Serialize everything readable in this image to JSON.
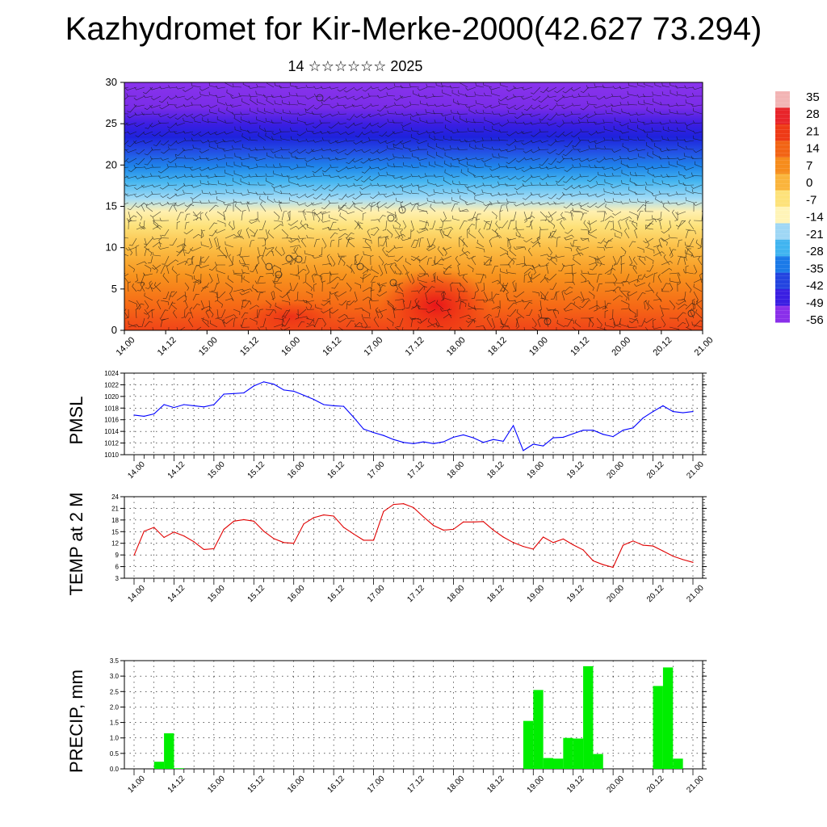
{
  "title": "Kazhydromet for Kir-Merke-2000(42.627 73.294)",
  "subtitle": "14 ☆☆☆☆☆☆ 2025",
  "time_labels": [
    "14.00",
    "14.12",
    "15.00",
    "15.12",
    "16.00",
    "16.12",
    "17.00",
    "17.12",
    "18.00",
    "18.12",
    "19.00",
    "19.12",
    "20.00",
    "20.12",
    "21.00"
  ],
  "chart_data": [
    {
      "type": "heatmap",
      "name": "temperature-wind-section",
      "y_ticks": [
        "0",
        "5",
        "10",
        "15",
        "20",
        "25",
        "30"
      ],
      "ylim": [
        0,
        30
      ],
      "x_range": [
        "14.00",
        "21.00"
      ],
      "colorbar": {
        "labels": [
          "35",
          "28",
          "21",
          "14",
          "7",
          "0",
          "-7",
          "-14",
          "-21",
          "-28",
          "-35",
          "-42",
          "-49",
          "-56"
        ],
        "colors": [
          "#f2b4b4",
          "#e8242a",
          "#ee3a16",
          "#f26414",
          "#f68c1c",
          "#fab43c",
          "#fde27a",
          "#fff4b8",
          "#9fd7f5",
          "#40b4f0",
          "#1b7ae8",
          "#2344e0",
          "#3a1ee2",
          "#8a2fea"
        ]
      }
    },
    {
      "type": "line",
      "ylabel": "PMSL",
      "ylim": [
        1010,
        1024
      ],
      "y_ticks": [
        "1010",
        "1012",
        "1014",
        "1016",
        "1018",
        "1020",
        "1022",
        "1024"
      ],
      "line_color": "#0000ff",
      "x": [
        0,
        1,
        2,
        3,
        4,
        5,
        6,
        7,
        8,
        9,
        10,
        11,
        12,
        13,
        14,
        15,
        16,
        17,
        18,
        19,
        20,
        21,
        22,
        23,
        24,
        25,
        26,
        27,
        28,
        29,
        30,
        31,
        32,
        33,
        34,
        35,
        36,
        37,
        38,
        39,
        40,
        41,
        42,
        43,
        44,
        45,
        46,
        47,
        48,
        49,
        50,
        51,
        52,
        53,
        54,
        55,
        56
      ],
      "values": [
        1016.8,
        1016.6,
        1017.0,
        1018.6,
        1018.1,
        1018.6,
        1018.4,
        1018.2,
        1018.6,
        1020.4,
        1020.5,
        1020.6,
        1021.8,
        1022.5,
        1022.1,
        1021.1,
        1020.9,
        1020.2,
        1019.5,
        1018.6,
        1018.4,
        1018.3,
        1016.4,
        1014.4,
        1013.8,
        1013.3,
        1012.6,
        1012.1,
        1011.9,
        1012.2,
        1011.9,
        1012.2,
        1013.0,
        1013.4,
        1012.9,
        1012.1,
        1012.6,
        1012.3,
        1015.0,
        1010.7,
        1011.8,
        1011.5,
        1012.9,
        1013.0,
        1013.6,
        1014.2,
        1014.2,
        1013.5,
        1013.1,
        1014.2,
        1014.6,
        1016.3,
        1017.4,
        1018.4,
        1017.4,
        1017.2,
        1017.4
      ]
    },
    {
      "type": "line",
      "ylabel": "TEMP at 2 M",
      "ylim": [
        3,
        24
      ],
      "y_ticks": [
        "3",
        "6",
        "9",
        "12",
        "15",
        "18",
        "21",
        "24"
      ],
      "line_color": "#e00000",
      "x": [
        0,
        1,
        2,
        3,
        4,
        5,
        6,
        7,
        8,
        9,
        10,
        11,
        12,
        13,
        14,
        15,
        16,
        17,
        18,
        19,
        20,
        21,
        22,
        23,
        24,
        25,
        26,
        27,
        28,
        29,
        30,
        31,
        32,
        33,
        34,
        35,
        36,
        37,
        38,
        39,
        40,
        41,
        42,
        43,
        44,
        45,
        46,
        47,
        48,
        49,
        50,
        51,
        52,
        53,
        54,
        55,
        56
      ],
      "values": [
        8.9,
        15.1,
        16.1,
        13.5,
        14.9,
        13.9,
        12.4,
        10.4,
        10.6,
        15.6,
        17.7,
        18.1,
        17.7,
        15.1,
        13.2,
        12.2,
        12.0,
        17.0,
        18.6,
        19.3,
        19.0,
        16.1,
        14.4,
        12.8,
        12.8,
        20.2,
        22.0,
        22.2,
        21.2,
        18.8,
        16.6,
        15.4,
        15.6,
        17.5,
        17.5,
        17.6,
        15.4,
        13.6,
        12.2,
        11.2,
        10.5,
        13.6,
        12.2,
        13.1,
        11.6,
        10.3,
        7.5,
        6.5,
        5.8,
        11.5,
        12.6,
        11.5,
        11.3,
        10.0,
        8.7,
        7.8,
        7.1
      ]
    },
    {
      "type": "bar",
      "ylabel": "PRECIP, mm",
      "ylim": [
        0,
        3.5
      ],
      "y_ticks": [
        "0.0",
        "0.5",
        "1.0",
        "1.5",
        "2.0",
        "2.5",
        "3.0",
        "3.5"
      ],
      "bar_color": "#00ee00",
      "x": [
        0,
        1,
        2,
        3,
        4,
        5,
        6,
        7,
        8,
        9,
        10,
        11,
        12,
        13,
        14,
        15,
        16,
        17,
        18,
        19,
        20,
        21,
        22,
        23,
        24,
        25,
        26,
        27,
        28,
        29,
        30,
        31,
        32,
        33,
        34,
        35,
        36,
        37,
        38,
        39,
        40,
        41,
        42,
        43,
        44,
        45,
        46,
        47,
        48,
        49,
        50,
        51,
        52,
        53,
        54,
        55
      ],
      "values": [
        0,
        0,
        0.23,
        1.15,
        0.02,
        0,
        0,
        0,
        0,
        0,
        0,
        0,
        0,
        0,
        0,
        0,
        0,
        0,
        0,
        0,
        0,
        0,
        0,
        0,
        0,
        0,
        0,
        0,
        0,
        0,
        0,
        0,
        0,
        0,
        0,
        0,
        0,
        0,
        0,
        1.55,
        2.55,
        0.35,
        0.33,
        1.0,
        0.98,
        3.32,
        0.48,
        0,
        0,
        0,
        0,
        0,
        2.68,
        3.28,
        0.33,
        0
      ]
    }
  ]
}
